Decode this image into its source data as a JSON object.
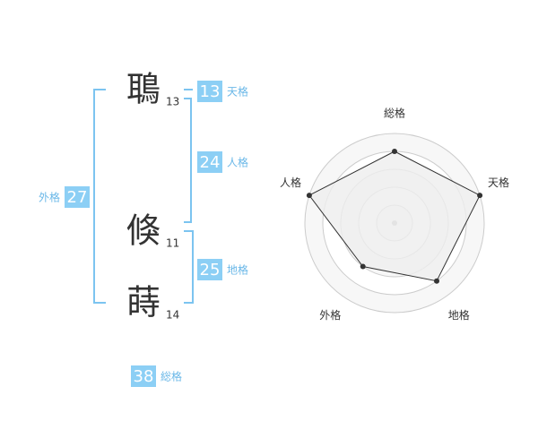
{
  "name": {
    "characters": [
      {
        "char": "鵈",
        "strokes": 13
      },
      {
        "char": "倏",
        "strokes": 11
      },
      {
        "char": "蒔",
        "strokes": 14
      }
    ]
  },
  "kakusu": [
    {
      "label": "天格",
      "value": 13
    },
    {
      "label": "人格",
      "value": 24
    },
    {
      "label": "地格",
      "value": 25
    },
    {
      "label": "外格",
      "value": 27
    },
    {
      "label": "総格",
      "value": 38
    }
  ],
  "chart_data": {
    "type": "radar",
    "categories": [
      "総格",
      "天格",
      "地格",
      "外格",
      "人格"
    ],
    "values": [
      4,
      5,
      4,
      3,
      5
    ],
    "rlim": [
      0,
      5
    ],
    "rticks": [
      1,
      2,
      3,
      4,
      5
    ],
    "color": "#333333",
    "fill": "#eeeeee"
  }
}
